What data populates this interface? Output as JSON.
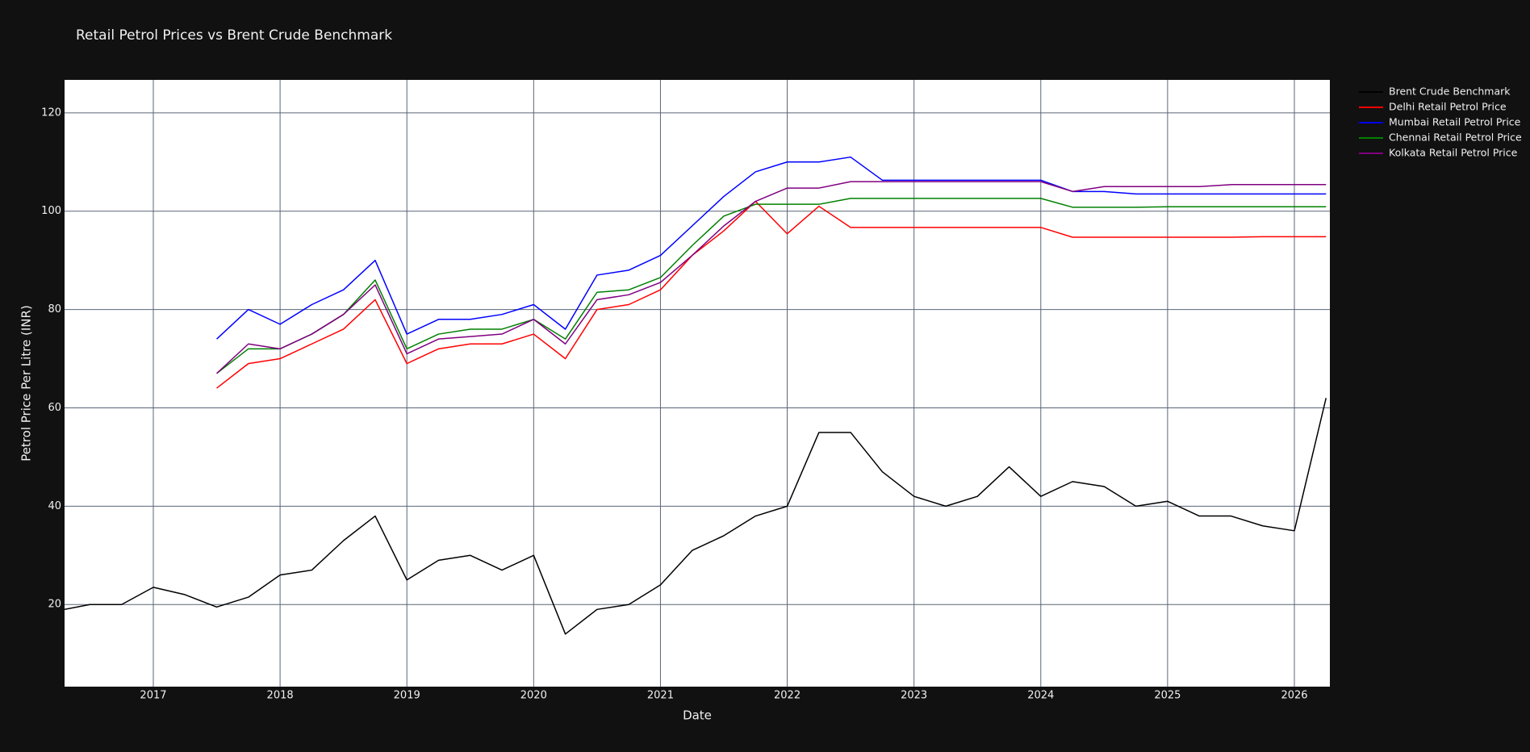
{
  "chart_data": {
    "type": "line",
    "title": "Retail Petrol Prices vs Brent Crude Benchmark",
    "x_label": "Date",
    "y_label": "Petrol Price Per Litre (INR)",
    "grid": true,
    "legend": "right-outside",
    "xlim": [
      2016.3,
      2026.28
    ],
    "xticks": [
      2017,
      2018,
      2019,
      2020,
      2021,
      2022,
      2023,
      2024,
      2025,
      2026
    ],
    "ylim": [
      3.3,
      126.7
    ],
    "yticks": [
      20,
      40,
      60,
      80,
      100,
      120
    ],
    "x": [
      2016.3,
      2016.5,
      2016.75,
      2017,
      2017.25,
      2017.5,
      2017.75,
      2018,
      2018.25,
      2018.5,
      2018.75,
      2019,
      2019.25,
      2019.5,
      2019.75,
      2020,
      2020.25,
      2020.5,
      2020.75,
      2021,
      2021.25,
      2021.5,
      2021.75,
      2022,
      2022.25,
      2022.5,
      2022.75,
      2023,
      2023.25,
      2023.5,
      2023.75,
      2024,
      2024.25,
      2024.5,
      2024.75,
      2025,
      2025.25,
      2025.5,
      2025.75,
      2026,
      2026.25
    ],
    "series": [
      {
        "name": "Brent Crude Benchmark",
        "color": "#000000",
        "values": [
          19,
          20,
          20,
          23.5,
          22,
          19.5,
          21.5,
          26,
          27,
          33,
          38,
          25,
          29,
          30,
          27,
          30,
          14,
          19,
          20,
          24,
          31,
          34,
          38,
          40,
          55,
          55,
          47,
          42,
          40,
          42,
          48,
          42,
          45,
          44,
          40,
          41,
          38,
          38,
          36,
          35,
          62
        ]
      },
      {
        "name": "Delhi Retail Petrol Price",
        "color": "#ff0000",
        "values": [
          null,
          null,
          null,
          null,
          null,
          64,
          69,
          70,
          73,
          76,
          82,
          69,
          72,
          73,
          73,
          75,
          70,
          80,
          81,
          84,
          91,
          96,
          102,
          95.4,
          101,
          96.7,
          96.7,
          96.7,
          96.7,
          96.7,
          96.7,
          96.7,
          94.7,
          94.7,
          94.7,
          94.7,
          94.7,
          94.7,
          94.8,
          94.8,
          94.8
        ]
      },
      {
        "name": "Mumbai Retail Petrol Price",
        "color": "#0000ff",
        "values": [
          null,
          null,
          null,
          null,
          null,
          74,
          80,
          77,
          81,
          84,
          90,
          75,
          78,
          78,
          79,
          81,
          76,
          87,
          88,
          91,
          97,
          103,
          108,
          110,
          110,
          111,
          106.3,
          106.3,
          106.3,
          106.3,
          106.3,
          106.3,
          104,
          104,
          103.5,
          103.5,
          103.5,
          103.5,
          103.5,
          103.5,
          103.5
        ]
      },
      {
        "name": "Chennai Retail Petrol Price",
        "color": "#008000",
        "values": [
          null,
          null,
          null,
          null,
          null,
          67,
          72,
          72,
          75,
          79,
          86,
          72,
          75,
          76,
          76,
          78,
          74,
          83.5,
          84,
          86.5,
          93,
          99,
          101.4,
          101.4,
          101.4,
          102.6,
          102.6,
          102.6,
          102.6,
          102.6,
          102.6,
          102.6,
          100.8,
          100.8,
          100.8,
          100.9,
          100.9,
          100.9,
          100.9,
          100.9,
          100.9
        ]
      },
      {
        "name": "Kolkata Retail Petrol Price",
        "color": "#800080",
        "values": [
          null,
          null,
          null,
          null,
          null,
          67,
          73,
          72,
          75,
          79,
          85,
          71,
          74,
          74.5,
          75,
          78,
          73,
          82,
          83,
          85.5,
          91,
          97,
          102,
          104.7,
          104.7,
          106,
          106,
          106,
          106,
          106,
          106,
          106,
          104,
          105,
          105,
          105,
          105,
          105.4,
          105.4,
          105.4,
          105.4
        ]
      }
    ]
  }
}
